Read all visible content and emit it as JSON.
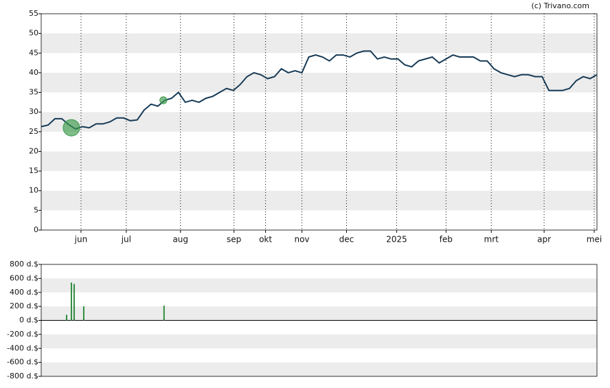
{
  "credit": "(c) Trivano.com",
  "chart_data": [
    {
      "type": "line",
      "color": "#163a56",
      "xlim": [
        0,
        81
      ],
      "ylim": [
        0,
        55
      ],
      "yticks": [
        0,
        5,
        10,
        15,
        20,
        25,
        30,
        35,
        40,
        45,
        50,
        55
      ],
      "xticks": [
        {
          "value": 5.8,
          "label": "jun"
        },
        {
          "value": 12.4,
          "label": "jul"
        },
        {
          "value": 20.3,
          "label": "aug"
        },
        {
          "value": 28.1,
          "label": "sep"
        },
        {
          "value": 32.7,
          "label": "okt"
        },
        {
          "value": 38,
          "label": "nov"
        },
        {
          "value": 44.5,
          "label": "dec"
        },
        {
          "value": 51.8,
          "label": "2025"
        },
        {
          "value": 59,
          "label": "feb"
        },
        {
          "value": 65.6,
          "label": "mrt"
        },
        {
          "value": 73.3,
          "label": "apr"
        },
        {
          "value": 80.6,
          "label": "mei"
        }
      ],
      "values": [
        26.3,
        26.7,
        28.3,
        28.3,
        26.8,
        25.7,
        26.3,
        26,
        27,
        27,
        27.5,
        28.5,
        28.5,
        27.8,
        28,
        30.5,
        32,
        31.5,
        33,
        33.5,
        35,
        32.5,
        33,
        32.5,
        33.5,
        34,
        35,
        36,
        35.5,
        37,
        39,
        40,
        39.5,
        38.5,
        39,
        41,
        40,
        40.5,
        40,
        44,
        44.5,
        44,
        43,
        44.5,
        44.5,
        44,
        45,
        45.5,
        45.5,
        43.5,
        44,
        43.5,
        43.5,
        42,
        41.5,
        43,
        43.5,
        44,
        42.5,
        43.5,
        44.5,
        44,
        44,
        44,
        43,
        43,
        41,
        40,
        39.5,
        39,
        39.5,
        39.5,
        39,
        39,
        35.5,
        35.5,
        35.5,
        36,
        38,
        39,
        38.5,
        39.5
      ],
      "markers": {
        "color": "#3a9a4a",
        "x": [
          4.4,
          17.8
        ],
        "values": [
          26,
          33
        ],
        "sizes": [
          1140,
          210
        ]
      },
      "grid": true,
      "bands": true
    },
    {
      "type": "bar",
      "color": "#2e8b3e",
      "xlim": [
        0,
        81
      ],
      "ylim": [
        -800,
        800
      ],
      "yticks": [
        {
          "value": -800,
          "label": "-800 d.$"
        },
        {
          "value": -600,
          "label": "-600 d.$"
        },
        {
          "value": -400,
          "label": "-400 d.$"
        },
        {
          "value": -200,
          "label": "-200 d.$"
        },
        {
          "value": 0,
          "label": "0 d.$"
        },
        {
          "value": 200,
          "label": "200 d.$"
        },
        {
          "value": 400,
          "label": "400 d.$"
        },
        {
          "value": 600,
          "label": "600 d.$"
        },
        {
          "value": 800,
          "label": "800 d.$"
        }
      ],
      "x": [
        3.7,
        4.4,
        4.8,
        6.2,
        17.9
      ],
      "values": [
        80,
        540,
        520,
        200,
        210
      ],
      "bands": true
    }
  ]
}
